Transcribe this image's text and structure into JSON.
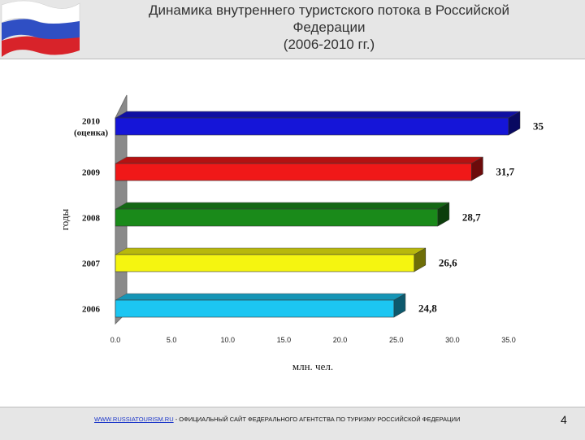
{
  "header": {
    "title_line1": "Динамика внутреннего туристского потока в Российской",
    "title_line2": "Федерации",
    "title_line3": "(2006-2010 гг.)"
  },
  "chart_data": {
    "type": "bar",
    "orientation": "horizontal",
    "categories": [
      "2010\n(оценка)",
      "2009",
      "2008",
      "2007",
      "2006"
    ],
    "values": [
      35,
      31.7,
      28.7,
      26.6,
      24.8
    ],
    "value_labels": [
      "35",
      "31,7",
      "28,7",
      "26,6",
      "24,8"
    ],
    "colors": [
      "#1515d8",
      "#f01818",
      "#1a8a1a",
      "#f5f510",
      "#1cc6f2"
    ],
    "xlim": [
      0,
      35
    ],
    "x_ticks": [
      "0.0",
      "5.0",
      "10.0",
      "15.0",
      "20.0",
      "25.0",
      "30.0",
      "35.0"
    ],
    "xlabel": "млн. чел.",
    "ylabel": "годы",
    "grid": false,
    "legend": "none"
  },
  "footer": {
    "link": "WWW.RUSSIATOURISM.RU",
    "text": " - ОФИЦИАЛЬНЫЙ САЙТ ФЕДЕРАЛЬНОГО АГЕНТСТВА ПО ТУРИЗМУ РОССИЙСКОЙ ФЕДЕРАЦИИ",
    "page_number": "4"
  }
}
